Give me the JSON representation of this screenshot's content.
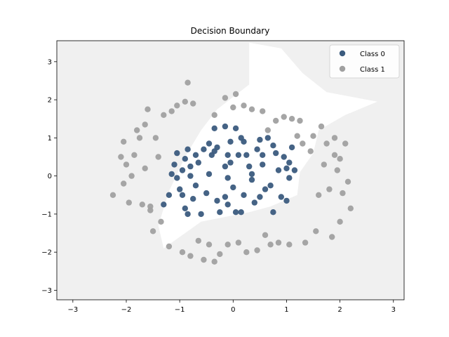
{
  "chart_data": {
    "type": "scatter",
    "title": "Decision Boundary",
    "xlabel": "",
    "ylabel": "",
    "xlim": [
      -3.3,
      3.2
    ],
    "ylim": [
      -3.25,
      3.55
    ],
    "xticks": [
      -3,
      -2,
      -1,
      0,
      1,
      2,
      3
    ],
    "yticks": [
      -3,
      -2,
      -1,
      0,
      1,
      2,
      3
    ],
    "grid": false,
    "legend_position": "top-right",
    "decision_region": {
      "description_color": "#f0f0f0",
      "class1_region_fill": "#f0f0f0",
      "class0_region_fill": "#ffffff",
      "class0_region_polygon": [
        [
          0.3,
          3.5
        ],
        [
          0.9,
          3.35
        ],
        [
          1.3,
          2.7
        ],
        [
          1.75,
          2.2
        ],
        [
          2.7,
          1.95
        ],
        [
          2.1,
          1.6
        ],
        [
          1.6,
          1.2
        ],
        [
          1.5,
          0.6
        ],
        [
          1.25,
          0.1
        ],
        [
          1.2,
          -0.5
        ],
        [
          0.7,
          -0.8
        ],
        [
          0.3,
          -0.95
        ],
        [
          -0.6,
          -1.2
        ],
        [
          -1.3,
          -1.9
        ],
        [
          -1.4,
          -1.3
        ],
        [
          -1.2,
          -0.4
        ],
        [
          -0.9,
          0.5
        ],
        [
          -0.6,
          1.2
        ],
        [
          -0.3,
          1.75
        ],
        [
          0.3,
          2.4
        ],
        [
          0.3,
          3.5
        ]
      ]
    },
    "series": [
      {
        "name": "Class 0",
        "color": "#3b5b7e",
        "points": [
          [
            -1.3,
            -0.75
          ],
          [
            -1.2,
            -0.5
          ],
          [
            -1.15,
            0.05
          ],
          [
            -1.1,
            0.3
          ],
          [
            -1.05,
            0.6
          ],
          [
            -1.05,
            -0.05
          ],
          [
            -1.0,
            -0.35
          ],
          [
            -0.95,
            0.15
          ],
          [
            -0.95,
            -0.5
          ],
          [
            -0.9,
            -0.85
          ],
          [
            -0.9,
            0.45
          ],
          [
            -0.85,
            0.7
          ],
          [
            -0.8,
            0.25
          ],
          [
            -0.8,
            0.0
          ],
          [
            -0.75,
            -0.6
          ],
          [
            -0.7,
            0.55
          ],
          [
            -0.7,
            -0.25
          ],
          [
            -0.65,
            0.35
          ],
          [
            -0.6,
            -1.0
          ],
          [
            -0.55,
            0.7
          ],
          [
            -0.5,
            -0.45
          ],
          [
            -0.45,
            0.05
          ],
          [
            -0.45,
            0.85
          ],
          [
            -0.4,
            0.55
          ],
          [
            -0.35,
            0.65
          ],
          [
            -0.3,
            0.75
          ],
          [
            -0.3,
            -0.65
          ],
          [
            -0.25,
            -0.95
          ],
          [
            -0.15,
            -0.55
          ],
          [
            -0.15,
            0.25
          ],
          [
            -0.1,
            -0.75
          ],
          [
            -0.05,
            0.35
          ],
          [
            -0.05,
            0.9
          ],
          [
            -0.1,
            0.55
          ],
          [
            -0.1,
            -0.05
          ],
          [
            0.0,
            -0.3
          ],
          [
            0.05,
            -0.95
          ],
          [
            0.1,
            0.55
          ],
          [
            0.15,
            -0.95
          ],
          [
            0.2,
            0.9
          ],
          [
            0.2,
            -0.5
          ],
          [
            0.25,
            0.55
          ],
          [
            0.3,
            0.25
          ],
          [
            0.35,
            0.05
          ],
          [
            0.35,
            -0.1
          ],
          [
            0.4,
            -0.7
          ],
          [
            0.45,
            0.7
          ],
          [
            0.5,
            0.95
          ],
          [
            0.5,
            -0.55
          ],
          [
            0.55,
            0.55
          ],
          [
            0.55,
            0.3
          ],
          [
            0.6,
            -0.35
          ],
          [
            0.65,
            1.0
          ],
          [
            0.7,
            -0.25
          ],
          [
            0.75,
            0.8
          ],
          [
            0.75,
            -0.95
          ],
          [
            0.8,
            0.6
          ],
          [
            0.85,
            0.15
          ],
          [
            0.9,
            -0.55
          ],
          [
            0.95,
            0.5
          ],
          [
            1.0,
            -0.65
          ],
          [
            1.0,
            0.2
          ],
          [
            1.05,
            -0.05
          ],
          [
            1.05,
            0.35
          ],
          [
            1.1,
            0.75
          ],
          [
            1.15,
            0.15
          ],
          [
            -0.35,
            1.25
          ],
          [
            -0.15,
            1.3
          ],
          [
            0.05,
            1.25
          ],
          [
            0.15,
            1.0
          ],
          [
            -0.85,
            -1.0
          ]
        ]
      },
      {
        "name": "Class 1",
        "color": "#a0a0a0",
        "points": [
          [
            -2.25,
            -0.5
          ],
          [
            -2.05,
            -0.2
          ],
          [
            -2.0,
            0.3
          ],
          [
            -2.05,
            0.9
          ],
          [
            -1.95,
            -0.7
          ],
          [
            -1.9,
            0.0
          ],
          [
            -1.85,
            0.55
          ],
          [
            -1.8,
            1.2
          ],
          [
            -1.75,
            1.0
          ],
          [
            -1.7,
            -0.75
          ],
          [
            -1.65,
            0.2
          ],
          [
            -1.65,
            1.35
          ],
          [
            -1.6,
            1.75
          ],
          [
            -1.55,
            -0.9
          ],
          [
            -1.5,
            -1.45
          ],
          [
            -1.45,
            1.0
          ],
          [
            -1.4,
            0.5
          ],
          [
            -1.35,
            -1.2
          ],
          [
            -1.3,
            1.6
          ],
          [
            -1.2,
            -1.85
          ],
          [
            -1.15,
            1.7
          ],
          [
            -1.05,
            1.85
          ],
          [
            -0.95,
            -2.0
          ],
          [
            -0.9,
            1.95
          ],
          [
            -0.85,
            2.45
          ],
          [
            -0.8,
            -2.1
          ],
          [
            -0.75,
            1.9
          ],
          [
            -0.65,
            -1.7
          ],
          [
            -0.55,
            -2.2
          ],
          [
            -0.45,
            -1.8
          ],
          [
            -0.35,
            1.6
          ],
          [
            -0.25,
            -2.05
          ],
          [
            -0.15,
            2.05
          ],
          [
            -0.1,
            -1.8
          ],
          [
            0.0,
            1.8
          ],
          [
            0.05,
            2.15
          ],
          [
            0.1,
            -1.75
          ],
          [
            0.2,
            1.85
          ],
          [
            0.25,
            -2.0
          ],
          [
            0.35,
            1.75
          ],
          [
            0.45,
            -1.95
          ],
          [
            0.55,
            1.7
          ],
          [
            0.6,
            -1.55
          ],
          [
            0.65,
            1.2
          ],
          [
            0.7,
            -1.8
          ],
          [
            0.8,
            1.45
          ],
          [
            0.85,
            -1.75
          ],
          [
            0.95,
            1.55
          ],
          [
            1.05,
            -1.8
          ],
          [
            1.1,
            1.5
          ],
          [
            1.2,
            1.05
          ],
          [
            1.25,
            1.45
          ],
          [
            1.3,
            0.85
          ],
          [
            1.35,
            -1.75
          ],
          [
            1.45,
            0.65
          ],
          [
            1.5,
            1.05
          ],
          [
            1.55,
            -1.45
          ],
          [
            1.6,
            -0.5
          ],
          [
            1.65,
            1.3
          ],
          [
            1.7,
            0.3
          ],
          [
            1.75,
            0.85
          ],
          [
            1.8,
            -0.35
          ],
          [
            1.85,
            -1.6
          ],
          [
            1.9,
            0.55
          ],
          [
            1.95,
            0.15
          ],
          [
            2.0,
            -1.2
          ],
          [
            2.05,
            -0.45
          ],
          [
            2.1,
            0.85
          ],
          [
            2.15,
            -0.15
          ],
          [
            2.2,
            -0.85
          ],
          [
            2.0,
            0.45
          ],
          [
            1.9,
            1.0
          ],
          [
            -2.1,
            0.5
          ],
          [
            -1.55,
            -0.8
          ],
          [
            -0.35,
            -2.25
          ]
        ]
      }
    ]
  }
}
